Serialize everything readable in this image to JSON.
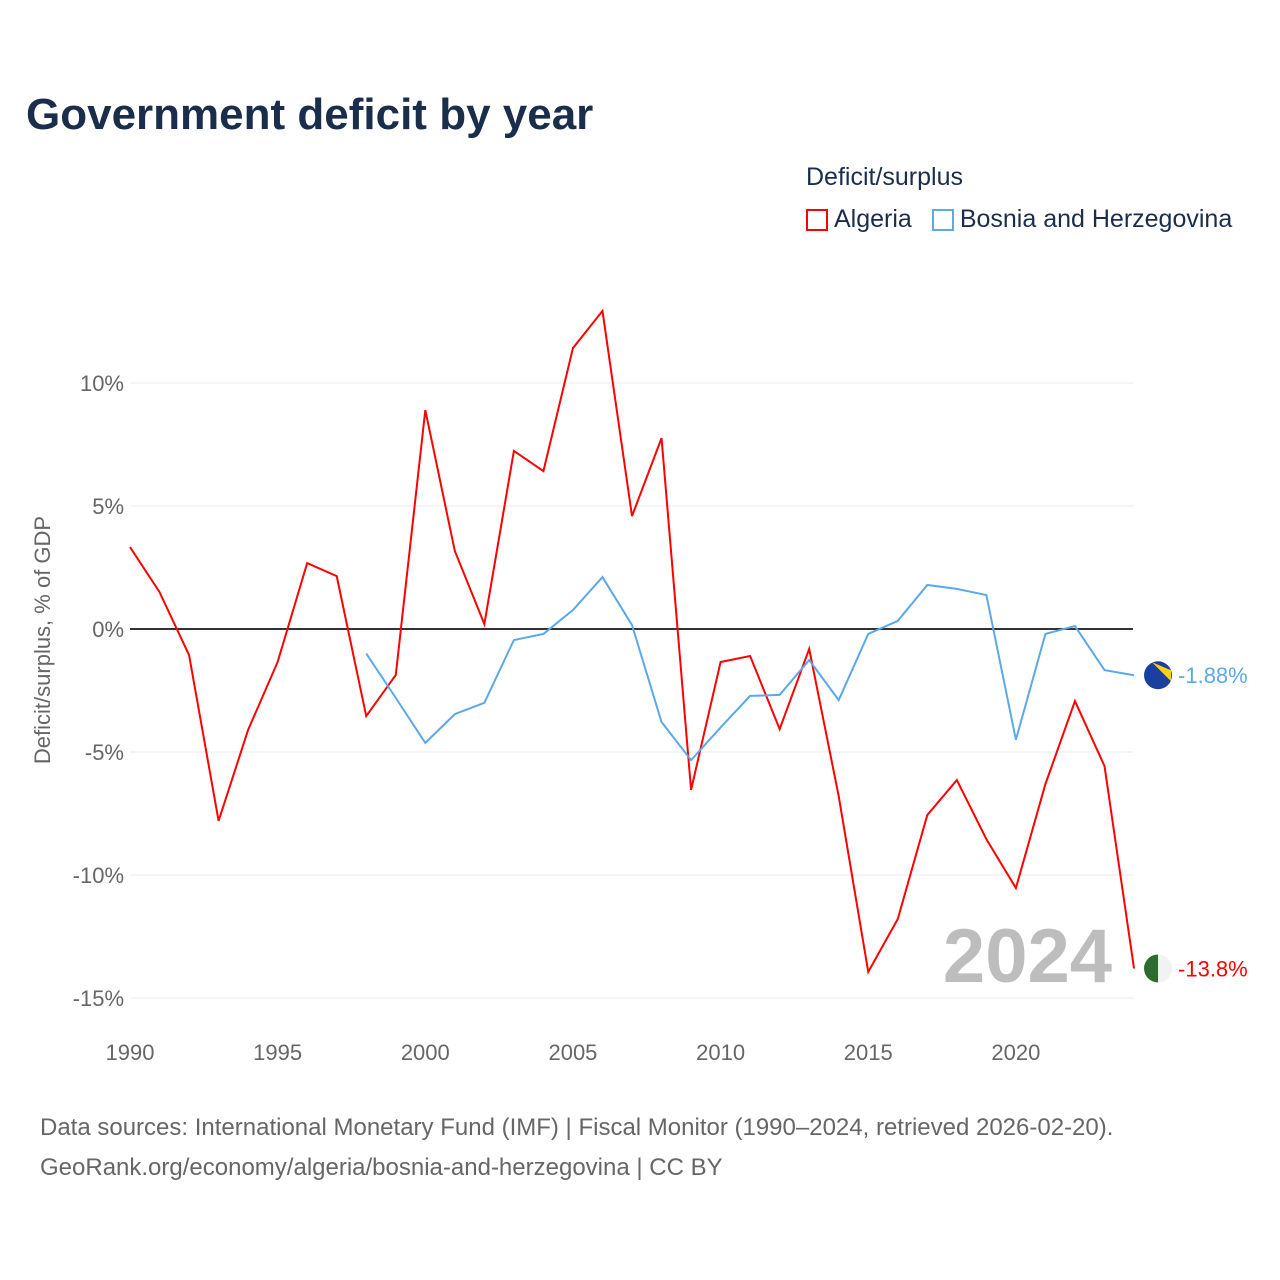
{
  "title": "Government deficit by year",
  "legend_title": "Deficit/surplus",
  "footer": {
    "line1": "Data sources: International Monetary Fund (IMF) | Fiscal Monitor (1990–2024, retrieved 2026-02-20).",
    "line2": "GeoRank.org/economy/algeria/bosnia-and-herzegovina | CC BY"
  },
  "year_watermark": "2024",
  "chart_data": {
    "type": "line",
    "title": "Government deficit by year",
    "xlabel": "",
    "ylabel": "Deficit/surplus, % of GDP",
    "xlim": [
      1990,
      2024
    ],
    "ylim": [
      -15,
      13
    ],
    "grid": true,
    "legend_placement": "top-right",
    "x_ticks": [
      1990,
      1995,
      2000,
      2005,
      2010,
      2015,
      2020
    ],
    "x_tick_labels": [
      "1990",
      "1995",
      "2000",
      "2005",
      "2010",
      "2015",
      "2020"
    ],
    "y_ticks": [
      -15,
      -10,
      -5,
      0,
      5,
      10
    ],
    "y_tick_labels": [
      "-15%",
      "-10%",
      "-5%",
      "0%",
      "5%",
      "10%"
    ],
    "series": [
      {
        "name": "Algeria",
        "color": "#ff0000",
        "end_label": "-13.8%",
        "x": [
          1990,
          1991,
          1992,
          1993,
          1994,
          1995,
          1996,
          1997,
          1998,
          1999,
          2000,
          2001,
          2002,
          2003,
          2004,
          2005,
          2006,
          2007,
          2008,
          2009,
          2010,
          2011,
          2012,
          2013,
          2014,
          2015,
          2016,
          2017,
          2018,
          2019,
          2020,
          2021,
          2022,
          2023,
          2024
        ],
        "values": [
          3.33,
          1.5,
          -1.06,
          -7.8,
          -4.1,
          -1.34,
          2.68,
          2.15,
          -3.54,
          -1.87,
          8.9,
          3.17,
          0.2,
          7.24,
          6.42,
          11.42,
          12.93,
          4.59,
          7.76,
          -6.54,
          -1.34,
          -1.1,
          -4.07,
          -0.81,
          -6.8,
          -13.94,
          -11.79,
          -7.56,
          -6.14,
          -8.54,
          -10.53,
          -6.3,
          -2.93,
          -5.57,
          -13.8
        ]
      },
      {
        "name": "Bosnia and Herzegovina",
        "color": "#5ba8ea",
        "end_label": "-1.88%",
        "x": [
          1998,
          1999,
          2000,
          2001,
          2002,
          2003,
          2004,
          2005,
          2006,
          2007,
          2008,
          2009,
          2010,
          2011,
          2012,
          2013,
          2014,
          2015,
          2016,
          2017,
          2018,
          2019,
          2020,
          2021,
          2022,
          2023,
          2024
        ],
        "values": [
          -1.0,
          -2.8,
          -4.63,
          -3.46,
          -3.0,
          -0.45,
          -0.2,
          0.77,
          2.11,
          0.16,
          -3.78,
          -5.33,
          -4.0,
          -2.72,
          -2.68,
          -1.26,
          -2.89,
          -0.2,
          0.33,
          1.79,
          1.63,
          1.38,
          -4.5,
          -0.2,
          0.12,
          -1.67,
          -1.88
        ]
      }
    ]
  }
}
